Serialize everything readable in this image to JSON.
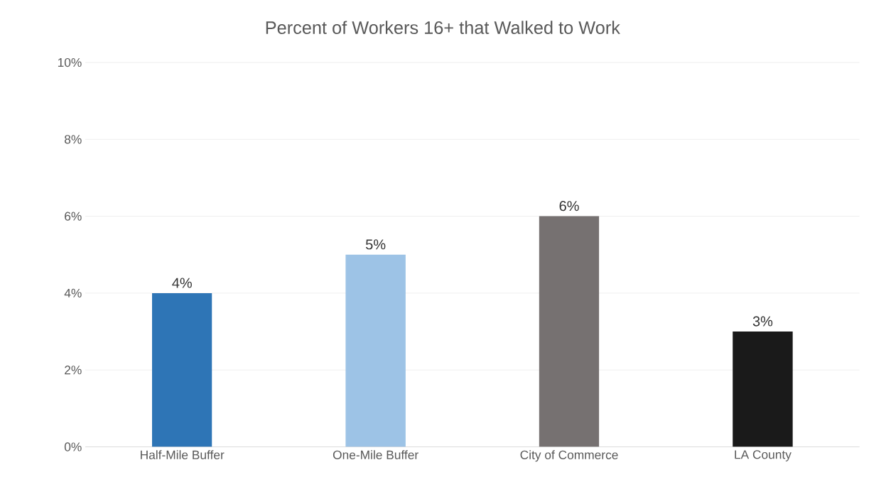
{
  "chart_data": {
    "type": "bar",
    "title": "Percent of Workers 16+ that Walked to Work",
    "categories": [
      "Half-Mile Buffer",
      "One-Mile Buffer",
      "City of Commerce",
      "LA County"
    ],
    "values": [
      4,
      5,
      6,
      3
    ],
    "value_labels": [
      "4%",
      "5%",
      "6%",
      "3%"
    ],
    "colors": [
      "#2e75b6",
      "#9dc3e6",
      "#767171",
      "#1a1a1a"
    ],
    "ylim": [
      0,
      10
    ],
    "yticks": [
      {
        "value": 0,
        "label": "0%"
      },
      {
        "value": 2,
        "label": "2%"
      },
      {
        "value": 4,
        "label": "4%"
      },
      {
        "value": 6,
        "label": "6%"
      },
      {
        "value": 8,
        "label": "8%"
      },
      {
        "value": 10,
        "label": "10%"
      }
    ],
    "grid": "y"
  }
}
